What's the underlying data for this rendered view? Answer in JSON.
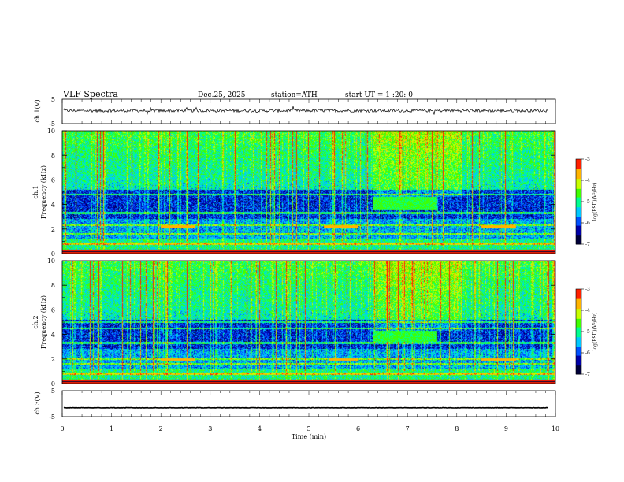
{
  "header": {
    "title": "VLF  Spectra",
    "date": "Dec.25, 2025",
    "station": "station=ATH",
    "start_ut": "start  UT  =   1  :20: 0"
  },
  "colors": {
    "colormap": [
      "#00003a",
      "#0000a8",
      "#0050ff",
      "#00c8ff",
      "#00ff90",
      "#40ff00",
      "#c8ff00",
      "#ffb400",
      "#ff2000",
      "#ffffff"
    ]
  },
  "chart_data": [
    {
      "type": "line",
      "id": "ch1-waveform",
      "ylabel": "ch.1(V)",
      "ylim": [
        -5,
        5
      ],
      "yticks": [
        "5",
        "-5"
      ],
      "xlim": [
        0,
        10
      ],
      "series": [
        {
          "values_note_excluded": false,
          "level": 0.3,
          "spread": 1.2
        }
      ]
    },
    {
      "type": "heatmap",
      "id": "ch1-spectrogram",
      "channel": "ch.1",
      "ylabel": "Frequency  (kHz)",
      "ylim": [
        0,
        10
      ],
      "yticks": [
        "0",
        "2",
        "4",
        "6",
        "8",
        "10"
      ],
      "xlim": [
        0,
        10
      ],
      "colorbar": {
        "label": "log(PSD)(V²/Hz)",
        "range": [
          -7,
          -3
        ],
        "ticks": [
          "-3",
          "-4",
          "-5",
          "-6",
          "-7"
        ]
      },
      "features": {
        "lines_khz": [
          0.8,
          1.6,
          2.3,
          3.3,
          4.8
        ],
        "emission_band": {
          "t_start": 6.3,
          "t_end": 7.6,
          "f_low": 3.5,
          "f_high": 4.6
        },
        "dashes": [
          {
            "t_start": 2.0,
            "t_end": 2.7,
            "f": 2.2
          },
          {
            "t_start": 5.3,
            "t_end": 6.0,
            "f": 2.2
          },
          {
            "t_start": 8.5,
            "t_end": 9.2,
            "f": 2.2
          }
        ]
      }
    },
    {
      "type": "heatmap",
      "id": "ch2-spectrogram",
      "channel": "ch.2",
      "ylabel": "Frequency  (kHz)",
      "ylim": [
        0,
        10
      ],
      "yticks": [
        "0",
        "2",
        "4",
        "6",
        "8",
        "10"
      ],
      "xlim": [
        0,
        10
      ],
      "colorbar": {
        "label": "log(PSD)(V²/Hz)",
        "range": [
          -7,
          -3
        ],
        "ticks": [
          "-3",
          "-4",
          "-5",
          "-6",
          "-7"
        ]
      },
      "features": {
        "lines_khz": [
          0.8,
          1.6,
          2.0,
          3.3,
          4.5,
          5.0
        ],
        "emission_band": {
          "t_start": 6.3,
          "t_end": 7.6,
          "f_low": 3.4,
          "f_high": 4.3
        },
        "dashes": [
          {
            "t_start": 2.0,
            "t_end": 2.7,
            "f": 1.95
          },
          {
            "t_start": 5.4,
            "t_end": 6.0,
            "f": 1.95
          },
          {
            "t_start": 8.5,
            "t_end": 9.2,
            "f": 1.95
          }
        ]
      }
    },
    {
      "type": "line",
      "id": "ch3-waveform",
      "ylabel": "ch.3(V)",
      "ylim": [
        -5,
        5
      ],
      "yticks": [
        "5",
        "-5"
      ],
      "xlim": [
        0,
        10
      ],
      "series": [
        {
          "level": -1.6,
          "spread": 0.15
        }
      ]
    }
  ],
  "xaxis": {
    "label": "Time  (min)",
    "ticks": [
      "0",
      "1",
      "2",
      "3",
      "4",
      "5",
      "6",
      "7",
      "8",
      "9",
      "10"
    ],
    "range": [
      0,
      10
    ]
  }
}
